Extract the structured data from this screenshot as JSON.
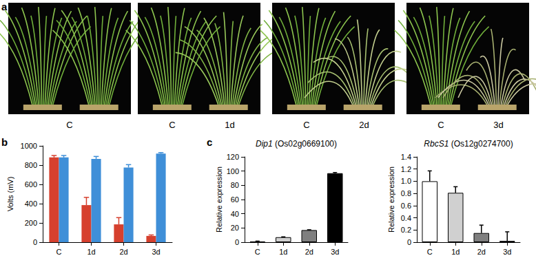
{
  "panel_labels": [
    "a",
    "b",
    "c"
  ],
  "photos": [
    {
      "captions": [
        "C"
      ]
    },
    {
      "captions": [
        "C",
        "1d"
      ]
    },
    {
      "captions": [
        "C",
        "2d"
      ]
    },
    {
      "captions": [
        "C",
        "3d"
      ]
    }
  ],
  "chart_data": [
    {
      "type": "bar",
      "ylabel": "Volts (mV)",
      "categories": [
        "C",
        "1d",
        "2d",
        "3d"
      ],
      "series": [
        {
          "color": "#d6402e",
          "values": [
            880,
            385,
            185,
            65
          ],
          "errors": [
            20,
            80,
            70,
            10
          ]
        },
        {
          "color": "#3f8fd8",
          "values": [
            880,
            865,
            775,
            920
          ],
          "errors": [
            20,
            25,
            30,
            10
          ]
        }
      ],
      "ylim": [
        0,
        1000
      ],
      "yticks": [
        0,
        200,
        400,
        600,
        800,
        1000
      ],
      "grid": false
    },
    {
      "type": "bar",
      "title": "Dip1 (Os02g0669100)",
      "ylabel": "Relative expression",
      "categories": [
        "C",
        "1d",
        "2d",
        "3d"
      ],
      "values": [
        1,
        7,
        17,
        97
      ],
      "errors": [
        0.5,
        0.5,
        0.5,
        1
      ],
      "colors": [
        "#ffffff",
        "#d0d0d0",
        "#7f7f7f",
        "#000000"
      ],
      "ylim": [
        0,
        120
      ],
      "yticks": [
        0,
        20,
        40,
        60,
        80,
        100,
        120
      ],
      "grid": false
    },
    {
      "type": "bar",
      "title": "RbcS1 (Os12g0274700)",
      "ylabel": "Relative expression",
      "categories": [
        "C",
        "1d",
        "2d",
        "3d"
      ],
      "values": [
        1.0,
        0.81,
        0.15,
        0.02
      ],
      "errors": [
        0.17,
        0.1,
        0.13,
        0.15
      ],
      "colors": [
        "#ffffff",
        "#d0d0d0",
        "#7f7f7f",
        "#000000"
      ],
      "ylim": [
        0,
        1.4
      ],
      "yticks": [
        0,
        {
          "value": 0.2,
          "label": "0.2"
        },
        {
          "value": 0.4,
          "label": "0.4"
        },
        {
          "value": 0.6,
          "label": "0.6"
        },
        {
          "value": 0.8,
          "label": "0.8"
        },
        {
          "value": 1,
          "label": "1.0"
        },
        {
          "value": 1.2,
          "label": "1.2"
        },
        {
          "value": 1.4,
          "label": "1.4"
        }
      ],
      "grid": false
    }
  ]
}
